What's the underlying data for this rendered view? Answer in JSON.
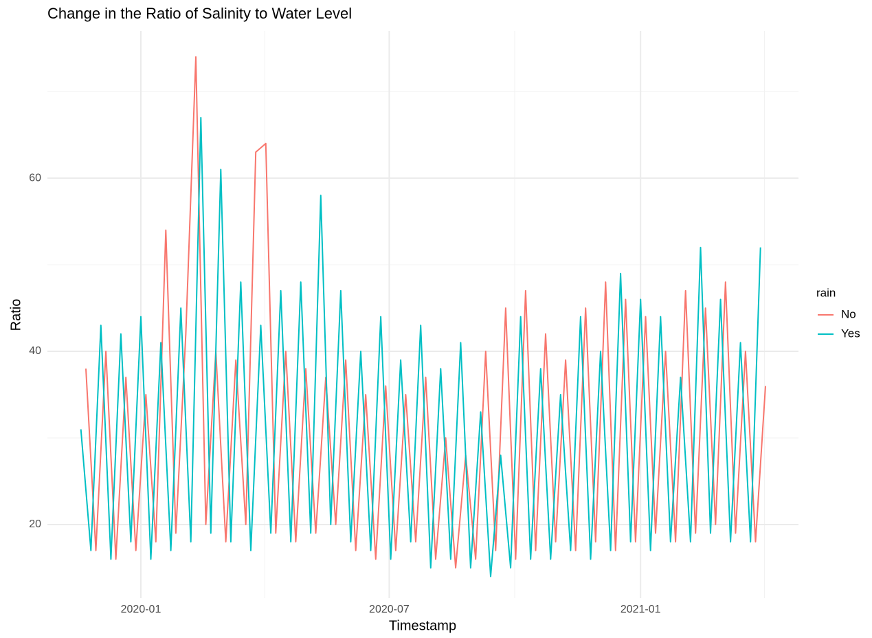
{
  "chart_data": {
    "type": "line",
    "title": "Change in the Ratio of Salinity to Water Level",
    "x_label": "Timestamp",
    "y_label": "Ratio",
    "legend_title": "rain",
    "legend_position": "right",
    "grid": true,
    "xlim": [
      2019.813,
      2021.316
    ],
    "ylim": [
      11.5,
      77
    ],
    "xticks": [
      {
        "value": 2020.0,
        "label": "2020-01"
      },
      {
        "value": 2020.497,
        "label": "2020-07"
      },
      {
        "value": 2021.0,
        "label": "2021-01"
      }
    ],
    "x_minor_ticks": [
      2019.75,
      2020.248,
      2020.748,
      2021.248
    ],
    "yticks": [
      20,
      40,
      60
    ],
    "y_minor_ticks": [
      30,
      50,
      70
    ],
    "series": [
      {
        "name": "No",
        "color": "#F8766D",
        "x": [
          2019.89,
          2019.91,
          2019.93,
          2019.95,
          2019.97,
          2019.99,
          2020.01,
          2020.03,
          2020.05,
          2020.07,
          2020.09,
          2020.11,
          2020.13,
          2020.15,
          2020.17,
          2020.19,
          2020.21,
          2020.23,
          2020.25,
          2020.27,
          2020.29,
          2020.31,
          2020.33,
          2020.35,
          2020.37,
          2020.39,
          2020.41,
          2020.43,
          2020.45,
          2020.47,
          2020.49,
          2020.51,
          2020.53,
          2020.55,
          2020.57,
          2020.59,
          2020.61,
          2020.63,
          2020.65,
          2020.67,
          2020.69,
          2020.71,
          2020.73,
          2020.75,
          2020.77,
          2020.79,
          2020.81,
          2020.83,
          2020.85,
          2020.87,
          2020.89,
          2020.91,
          2020.93,
          2020.95,
          2020.97,
          2020.99,
          2021.01,
          2021.03,
          2021.05,
          2021.07,
          2021.09,
          2021.11,
          2021.13,
          2021.15,
          2021.17,
          2021.19,
          2021.21,
          2021.23,
          2021.25
        ],
        "values": [
          38,
          17,
          40,
          16,
          37,
          17,
          35,
          18,
          54,
          19,
          42,
          74,
          20,
          40,
          18,
          39,
          20,
          63,
          64,
          19,
          40,
          18,
          38,
          19,
          37,
          20,
          39,
          17,
          35,
          16,
          36,
          17,
          35,
          18,
          37,
          16,
          30,
          15,
          28,
          16,
          40,
          17,
          45,
          16,
          47,
          17,
          42,
          18,
          39,
          17,
          45,
          18,
          48,
          17,
          46,
          18,
          44,
          19,
          40,
          18,
          47,
          19,
          45,
          20,
          48,
          19,
          40,
          18,
          36
        ]
      },
      {
        "name": "Yes",
        "color": "#00BFC4",
        "x": [
          2019.88,
          2019.9,
          2019.92,
          2019.94,
          2019.96,
          2019.98,
          2020.0,
          2020.02,
          2020.04,
          2020.06,
          2020.08,
          2020.1,
          2020.12,
          2020.14,
          2020.16,
          2020.18,
          2020.2,
          2020.22,
          2020.24,
          2020.26,
          2020.28,
          2020.3,
          2020.32,
          2020.34,
          2020.36,
          2020.38,
          2020.4,
          2020.42,
          2020.44,
          2020.46,
          2020.48,
          2020.5,
          2020.52,
          2020.54,
          2020.56,
          2020.58,
          2020.6,
          2020.62,
          2020.64,
          2020.66,
          2020.68,
          2020.7,
          2020.72,
          2020.74,
          2020.76,
          2020.78,
          2020.8,
          2020.82,
          2020.84,
          2020.86,
          2020.88,
          2020.9,
          2020.92,
          2020.94,
          2020.96,
          2020.98,
          2021.0,
          2021.02,
          2021.04,
          2021.06,
          2021.08,
          2021.1,
          2021.12,
          2021.14,
          2021.16,
          2021.18,
          2021.2,
          2021.22,
          2021.24
        ],
        "values": [
          31,
          17,
          43,
          16,
          42,
          18,
          44,
          16,
          41,
          17,
          45,
          18,
          67,
          19,
          61,
          18,
          48,
          17,
          43,
          19,
          47,
          18,
          48,
          19,
          58,
          20,
          47,
          18,
          40,
          17,
          44,
          16,
          39,
          18,
          43,
          15,
          38,
          16,
          41,
          15,
          33,
          14,
          28,
          15,
          44,
          16,
          38,
          16,
          35,
          17,
          44,
          16,
          40,
          17,
          49,
          18,
          46,
          17,
          44,
          18,
          37,
          18,
          52,
          19,
          46,
          18,
          41,
          18,
          52
        ]
      }
    ]
  }
}
